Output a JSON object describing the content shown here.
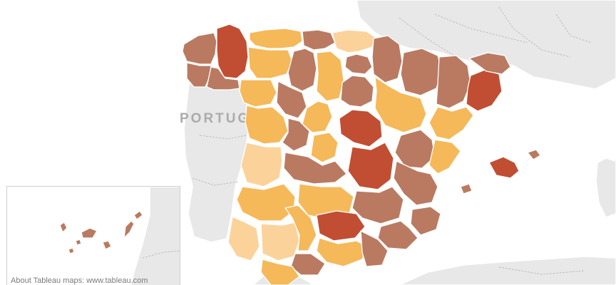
{
  "map": {
    "country_label": "PORTUG",
    "credit": "About Tableau maps: www.tableau.com"
  },
  "colors": {
    "level_1": "#fbd39a",
    "level_2": "#f5b95a",
    "level_3": "#ba7a62",
    "level_4": "#c14e33",
    "land": "#e8e8e8",
    "sea": "#ffffff",
    "border": "#ffffff"
  }
}
